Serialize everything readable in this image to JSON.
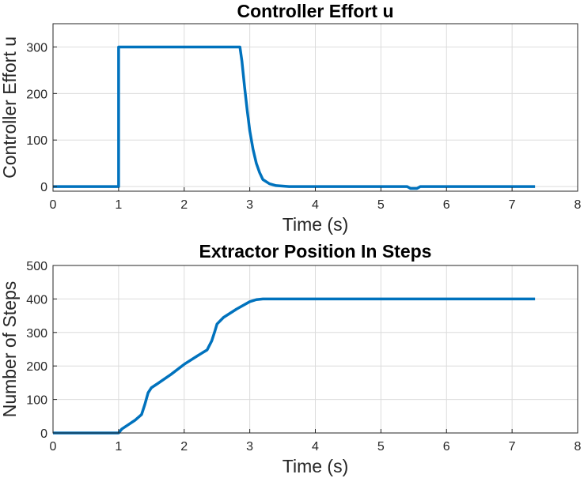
{
  "chart_data": [
    {
      "type": "line",
      "title": "Controller Effort u",
      "xlabel": "Time (s)",
      "ylabel": "Controller Effort u",
      "xlim": [
        0,
        8
      ],
      "ylim": [
        -10,
        350
      ],
      "xticks": [
        "0",
        "1",
        "2",
        "3",
        "4",
        "5",
        "6",
        "7",
        "8"
      ],
      "yticks": [
        "0",
        "100",
        "200",
        "300"
      ],
      "ytick_values": [
        0,
        100,
        200,
        300
      ],
      "grid": true,
      "color": "#0072BD",
      "series": [
        {
          "name": "u",
          "x": [
            0,
            1.0,
            1.0,
            2.85,
            2.88,
            2.92,
            2.96,
            3.0,
            3.05,
            3.1,
            3.15,
            3.2,
            3.3,
            3.4,
            3.6,
            5.4,
            5.45,
            5.55,
            5.6,
            7.35
          ],
          "y": [
            0,
            0,
            300,
            300,
            270,
            215,
            165,
            120,
            80,
            50,
            30,
            15,
            6,
            2,
            0,
            0,
            -4,
            -4,
            0,
            0
          ]
        }
      ]
    },
    {
      "type": "line",
      "title": "Extractor Position In Steps",
      "xlabel": "Time (s)",
      "ylabel": "Number of Steps",
      "xlim": [
        0,
        8
      ],
      "ylim": [
        0,
        500
      ],
      "xticks": [
        "0",
        "1",
        "2",
        "3",
        "4",
        "5",
        "6",
        "7",
        "8"
      ],
      "yticks": [
        "0",
        "100",
        "200",
        "300",
        "400",
        "500"
      ],
      "ytick_values": [
        0,
        100,
        200,
        300,
        400,
        500
      ],
      "grid": true,
      "color": "#0072BD",
      "series": [
        {
          "name": "steps",
          "x": [
            0,
            1.0,
            1.05,
            1.15,
            1.25,
            1.35,
            1.4,
            1.45,
            1.5,
            1.6,
            1.8,
            2.0,
            2.2,
            2.35,
            2.42,
            2.47,
            2.5,
            2.6,
            2.8,
            3.0,
            3.1,
            3.2,
            7.35
          ],
          "y": [
            0,
            0,
            12,
            25,
            38,
            55,
            85,
            120,
            135,
            148,
            175,
            205,
            230,
            248,
            275,
            305,
            325,
            345,
            370,
            392,
            398,
            400,
            400
          ]
        }
      ]
    }
  ]
}
